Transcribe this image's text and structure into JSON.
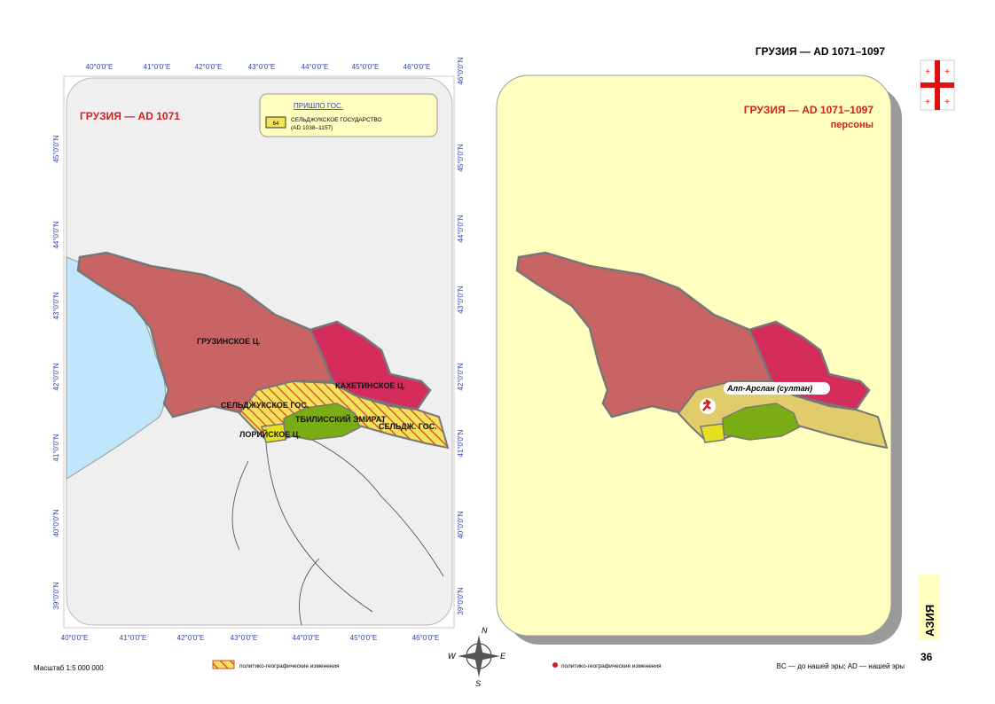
{
  "header": {
    "title": "ГРУЗИЯ — AD 1071–1097"
  },
  "left_map": {
    "title": "ГРУЗИЯ — AD 1071",
    "legend": {
      "heading": "ПРИШЛО ГОС.",
      "code": "64",
      "name": "СЕЛЬДЖУКСКОЕ ГОСУДАРСТВО",
      "dates": "(AD 1038–1157)"
    },
    "labels": [
      "ГРУЗИНСКОЕ Ц.",
      "КАХЕТИНСКОЕ Ц.",
      "СЕЛЬДЖУКСКОЕ ГОС.",
      "ТБИЛИССКИЙ ЭМИРАТ",
      "ЛОРИЙСКОЕ Ц.",
      "СЕЛЬДЖ. ГОС."
    ],
    "top_ticks": [
      "40°0'0\"E",
      "41°0'0\"E",
      "42°0'0\"E",
      "43°0'0\"E",
      "44°0'0\"E",
      "45°0'0\"E",
      "46°0'0\"E"
    ],
    "bottom_ticks": [
      "40°0'0\"E",
      "41°0'0\"E",
      "42°0'0\"E",
      "43°0'0\"E",
      "44°0'0\"E",
      "45°0'0\"E",
      "46°0'0\"E"
    ],
    "left_ticks": [
      "45°0'0\"N",
      "44°0'0\"N",
      "43°0'0\"N",
      "42°0'0\"N",
      "41°0'0\"N",
      "40°0'0\"N",
      "39°0'0\"N"
    ],
    "right_ticks": [
      "46°0'0\"N",
      "45°0'0\"N",
      "44°0'0\"N",
      "43°0'0\"N",
      "42°0'0\"N",
      "41°0'0\"N",
      "40°0'0\"N",
      "39°0'0\"N"
    ]
  },
  "right_map": {
    "title": "ГРУЗИЯ — AD 1071–1097",
    "subtitle": "персоны",
    "person": "Алп-Арслан (султан)"
  },
  "compass": [
    "N",
    "E",
    "S",
    "W"
  ],
  "side": {
    "region": "АЗИЯ",
    "page": "36"
  },
  "footer": {
    "scale": "Масштаб 1:5 000 000",
    "legend_left": "политико-географические изменения",
    "legend_right": "политико-географические изменения",
    "era_note": "BC — до нашей эры; AD — нашей эры"
  }
}
